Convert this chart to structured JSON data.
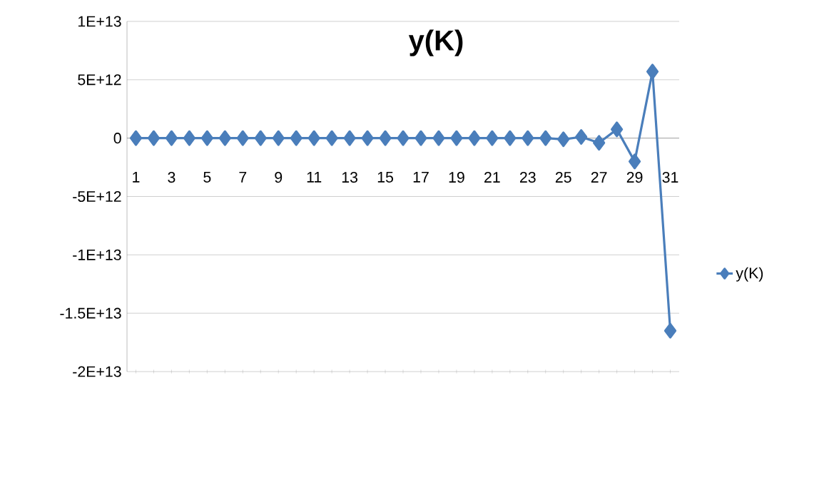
{
  "chart_data": {
    "type": "line",
    "title": "y(K)",
    "categories": [
      "1",
      null,
      "3",
      null,
      "5",
      null,
      "7",
      null,
      "9",
      null,
      "11",
      null,
      "13",
      null,
      "15",
      null,
      "17",
      null,
      "19",
      null,
      "21",
      null,
      "23",
      null,
      "25",
      null,
      "27",
      null,
      "29",
      null,
      "31"
    ],
    "series": [
      {
        "name": "y(K)",
        "color": "#4a7ebb",
        "values": [
          0,
          0,
          0,
          0,
          0,
          0,
          0,
          0,
          0,
          0,
          0,
          0,
          0,
          0,
          0,
          0,
          0,
          0,
          0,
          0,
          0,
          0,
          0,
          0,
          -100000000000.0,
          100000000000.0,
          -400000000000.0,
          750000000000.0,
          -2000000000000.0,
          5700000000000.0,
          -16500000000000.0
        ]
      }
    ],
    "ylim": [
      -20000000000000.0,
      10000000000000.0
    ],
    "yticks": [
      {
        "value": 10000000000000.0,
        "label": "1E+13"
      },
      {
        "value": 5000000000000.0,
        "label": "5E+12"
      },
      0,
      {
        "value": -5000000000000.0,
        "label": "-5E+12"
      },
      {
        "value": -10000000000000.0,
        "label": "-1E+13"
      },
      {
        "value": -15000000000000.0,
        "label": "-1.5E+13"
      },
      {
        "value": -20000000000000.0,
        "label": "-2E+13"
      }
    ],
    "grid": "y",
    "legend": "right",
    "marker": "diamond",
    "line_style": "solid"
  }
}
